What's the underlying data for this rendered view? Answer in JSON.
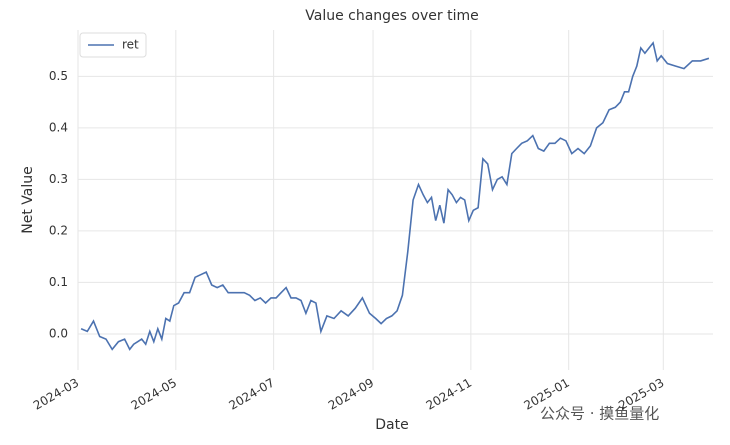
{
  "chart_data": {
    "type": "line",
    "title": "Value changes over time",
    "xlabel": "Date",
    "ylabel": "Net Value",
    "watermark": "公众号 · 摸鱼量化",
    "x": [
      "2024-03",
      "2024-03",
      "2024-03",
      "2024-03",
      "2024-03",
      "2024-03",
      "2024-03",
      "2024-03",
      "2024-04",
      "2024-04",
      "2024-04",
      "2024-04",
      "2024-04",
      "2024-04",
      "2024-04",
      "2024-04",
      "2024-04",
      "2024-04",
      "2024-04",
      "2024-04",
      "2024-05",
      "2024-05",
      "2024-05",
      "2024-05",
      "2024-05",
      "2024-05",
      "2024-05",
      "2024-05",
      "2024-05",
      "2024-06",
      "2024-06",
      "2024-06",
      "2024-06",
      "2024-06",
      "2024-06",
      "2024-06",
      "2024-06",
      "2024-06",
      "2024-07",
      "2024-07",
      "2024-07",
      "2024-07",
      "2024-07",
      "2024-07",
      "2024-07",
      "2024-07",
      "2024-07",
      "2024-07",
      "2024-08",
      "2024-08",
      "2024-08",
      "2024-08",
      "2024-08",
      "2024-08",
      "2024-08",
      "2024-09",
      "2024-09",
      "2024-09",
      "2024-09",
      "2024-09",
      "2024-09",
      "2024-09",
      "2024-09",
      "2024-09",
      "2024-10",
      "2024-10",
      "2024-10",
      "2024-10",
      "2024-10",
      "2024-10",
      "2024-10",
      "2024-10",
      "2024-10",
      "2024-10",
      "2024-10",
      "2024-10",
      "2024-11",
      "2024-11",
      "2024-11",
      "2024-11",
      "2024-11",
      "2024-11",
      "2024-11",
      "2024-11",
      "2024-11",
      "2024-11",
      "2024-12",
      "2024-12",
      "2024-12",
      "2024-12",
      "2024-12",
      "2024-12",
      "2024-12",
      "2024-12",
      "2024-12",
      "2025-01",
      "2025-01",
      "2025-01",
      "2025-01",
      "2025-01",
      "2025-01",
      "2025-01",
      "2025-01",
      "2025-02",
      "2025-02",
      "2025-02",
      "2025-02",
      "2025-02",
      "2025-02",
      "2025-02",
      "2025-02",
      "2025-02",
      "2025-02",
      "2025-02",
      "2025-03",
      "2025-03",
      "2025-03",
      "2025-03",
      "2025-03",
      "2025-03"
    ],
    "series": [
      {
        "name": "ret",
        "color": "#4c72b0",
        "values": [
          0.01,
          0.005,
          0.025,
          -0.005,
          -0.01,
          -0.03,
          -0.015,
          -0.01,
          -0.03,
          -0.02,
          -0.015,
          -0.01,
          -0.02,
          0.005,
          -0.015,
          0.01,
          -0.01,
          0.03,
          0.025,
          0.055,
          0.06,
          0.08,
          0.08,
          0.11,
          0.115,
          0.12,
          0.095,
          0.09,
          0.095,
          0.08,
          0.08,
          0.08,
          0.08,
          0.075,
          0.065,
          0.07,
          0.06,
          0.07,
          0.07,
          0.08,
          0.09,
          0.07,
          0.07,
          0.065,
          0.04,
          0.065,
          0.06,
          0.005,
          0.035,
          0.03,
          0.045,
          0.035,
          0.05,
          0.07,
          0.04,
          0.03,
          0.02,
          0.03,
          0.035,
          0.045,
          0.075,
          0.16,
          0.26,
          0.29,
          0.27,
          0.255,
          0.265,
          0.22,
          0.25,
          0.215,
          0.28,
          0.27,
          0.255,
          0.265,
          0.26,
          0.22,
          0.24,
          0.245,
          0.34,
          0.33,
          0.28,
          0.3,
          0.305,
          0.29,
          0.35,
          0.36,
          0.37,
          0.375,
          0.385,
          0.36,
          0.355,
          0.37,
          0.37,
          0.38,
          0.375,
          0.35,
          0.36,
          0.35,
          0.365,
          0.4,
          0.41,
          0.435,
          0.44,
          0.45,
          0.47,
          0.47,
          0.5,
          0.52,
          0.555,
          0.545,
          0.555,
          0.565,
          0.53,
          0.54,
          0.525,
          0.52,
          0.515,
          0.53,
          0.53,
          0.535
        ]
      }
    ],
    "xlim": [
      "2024-03",
      "2025-04"
    ],
    "xticks": [
      "2024-03",
      "2024-05",
      "2024-07",
      "2024-09",
      "2024-11",
      "2025-01",
      "2025-03"
    ],
    "ylim": [
      -0.07,
      0.59
    ],
    "yticks": [
      {
        "value": 0,
        "label": "0.0"
      },
      0.1,
      0.2,
      0.3,
      0.4,
      0.5
    ],
    "grid": true,
    "legend": "upper left"
  }
}
